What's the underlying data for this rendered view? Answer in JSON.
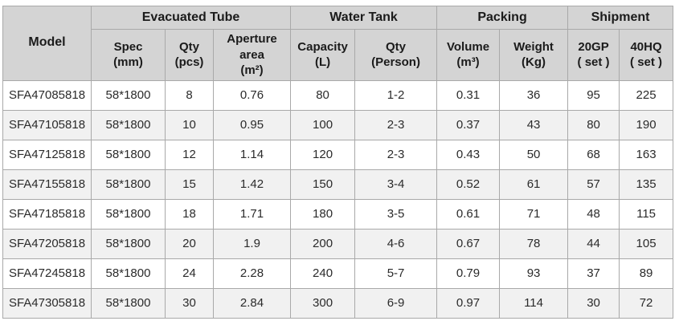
{
  "table": {
    "header_groups": [
      {
        "label": "Model"
      },
      {
        "label": "Evacuated Tube"
      },
      {
        "label": "Water Tank"
      },
      {
        "label": "Packing"
      },
      {
        "label": "Shipment"
      }
    ],
    "sub_headers": [
      "Spec\n(mm)",
      "Qty\n(pcs)",
      "Aperture\narea\n(m²)",
      "Capacity\n(L)",
      "Qty\n(Person)",
      "Volume\n(m³)",
      "Weight\n(Kg)",
      "20GP\n( set )",
      "40HQ\n( set )"
    ],
    "rows": [
      [
        "SFA47085818",
        "58*1800",
        "8",
        "0.76",
        "80",
        "1-2",
        "0.31",
        "36",
        "95",
        "225"
      ],
      [
        "SFA47105818",
        "58*1800",
        "10",
        "0.95",
        "100",
        "2-3",
        "0.37",
        "43",
        "80",
        "190"
      ],
      [
        "SFA47125818",
        "58*1800",
        "12",
        "1.14",
        "120",
        "2-3",
        "0.43",
        "50",
        "68",
        "163"
      ],
      [
        "SFA47155818",
        "58*1800",
        "15",
        "1.42",
        "150",
        "3-4",
        "0.52",
        "61",
        "57",
        "135"
      ],
      [
        "SFA47185818",
        "58*1800",
        "18",
        "1.71",
        "180",
        "3-5",
        "0.61",
        "71",
        "48",
        "115"
      ],
      [
        "SFA47205818",
        "58*1800",
        "20",
        "1.9",
        "200",
        "4-6",
        "0.67",
        "78",
        "44",
        "105"
      ],
      [
        "SFA47245818",
        "58*1800",
        "24",
        "2.28",
        "240",
        "5-7",
        "0.79",
        "93",
        "37",
        "89"
      ],
      [
        "SFA47305818",
        "58*1800",
        "30",
        "2.84",
        "300",
        "6-9",
        "0.97",
        "114",
        "30",
        "72"
      ]
    ]
  },
  "colors": {
    "header_bg": "#d4d4d4",
    "row_bg": "#ffffff",
    "row_alt_bg": "#f1f1f1",
    "border": "#a9a9a9",
    "header_text": "#1b1b1b",
    "body_text": "#2b2b2b"
  }
}
